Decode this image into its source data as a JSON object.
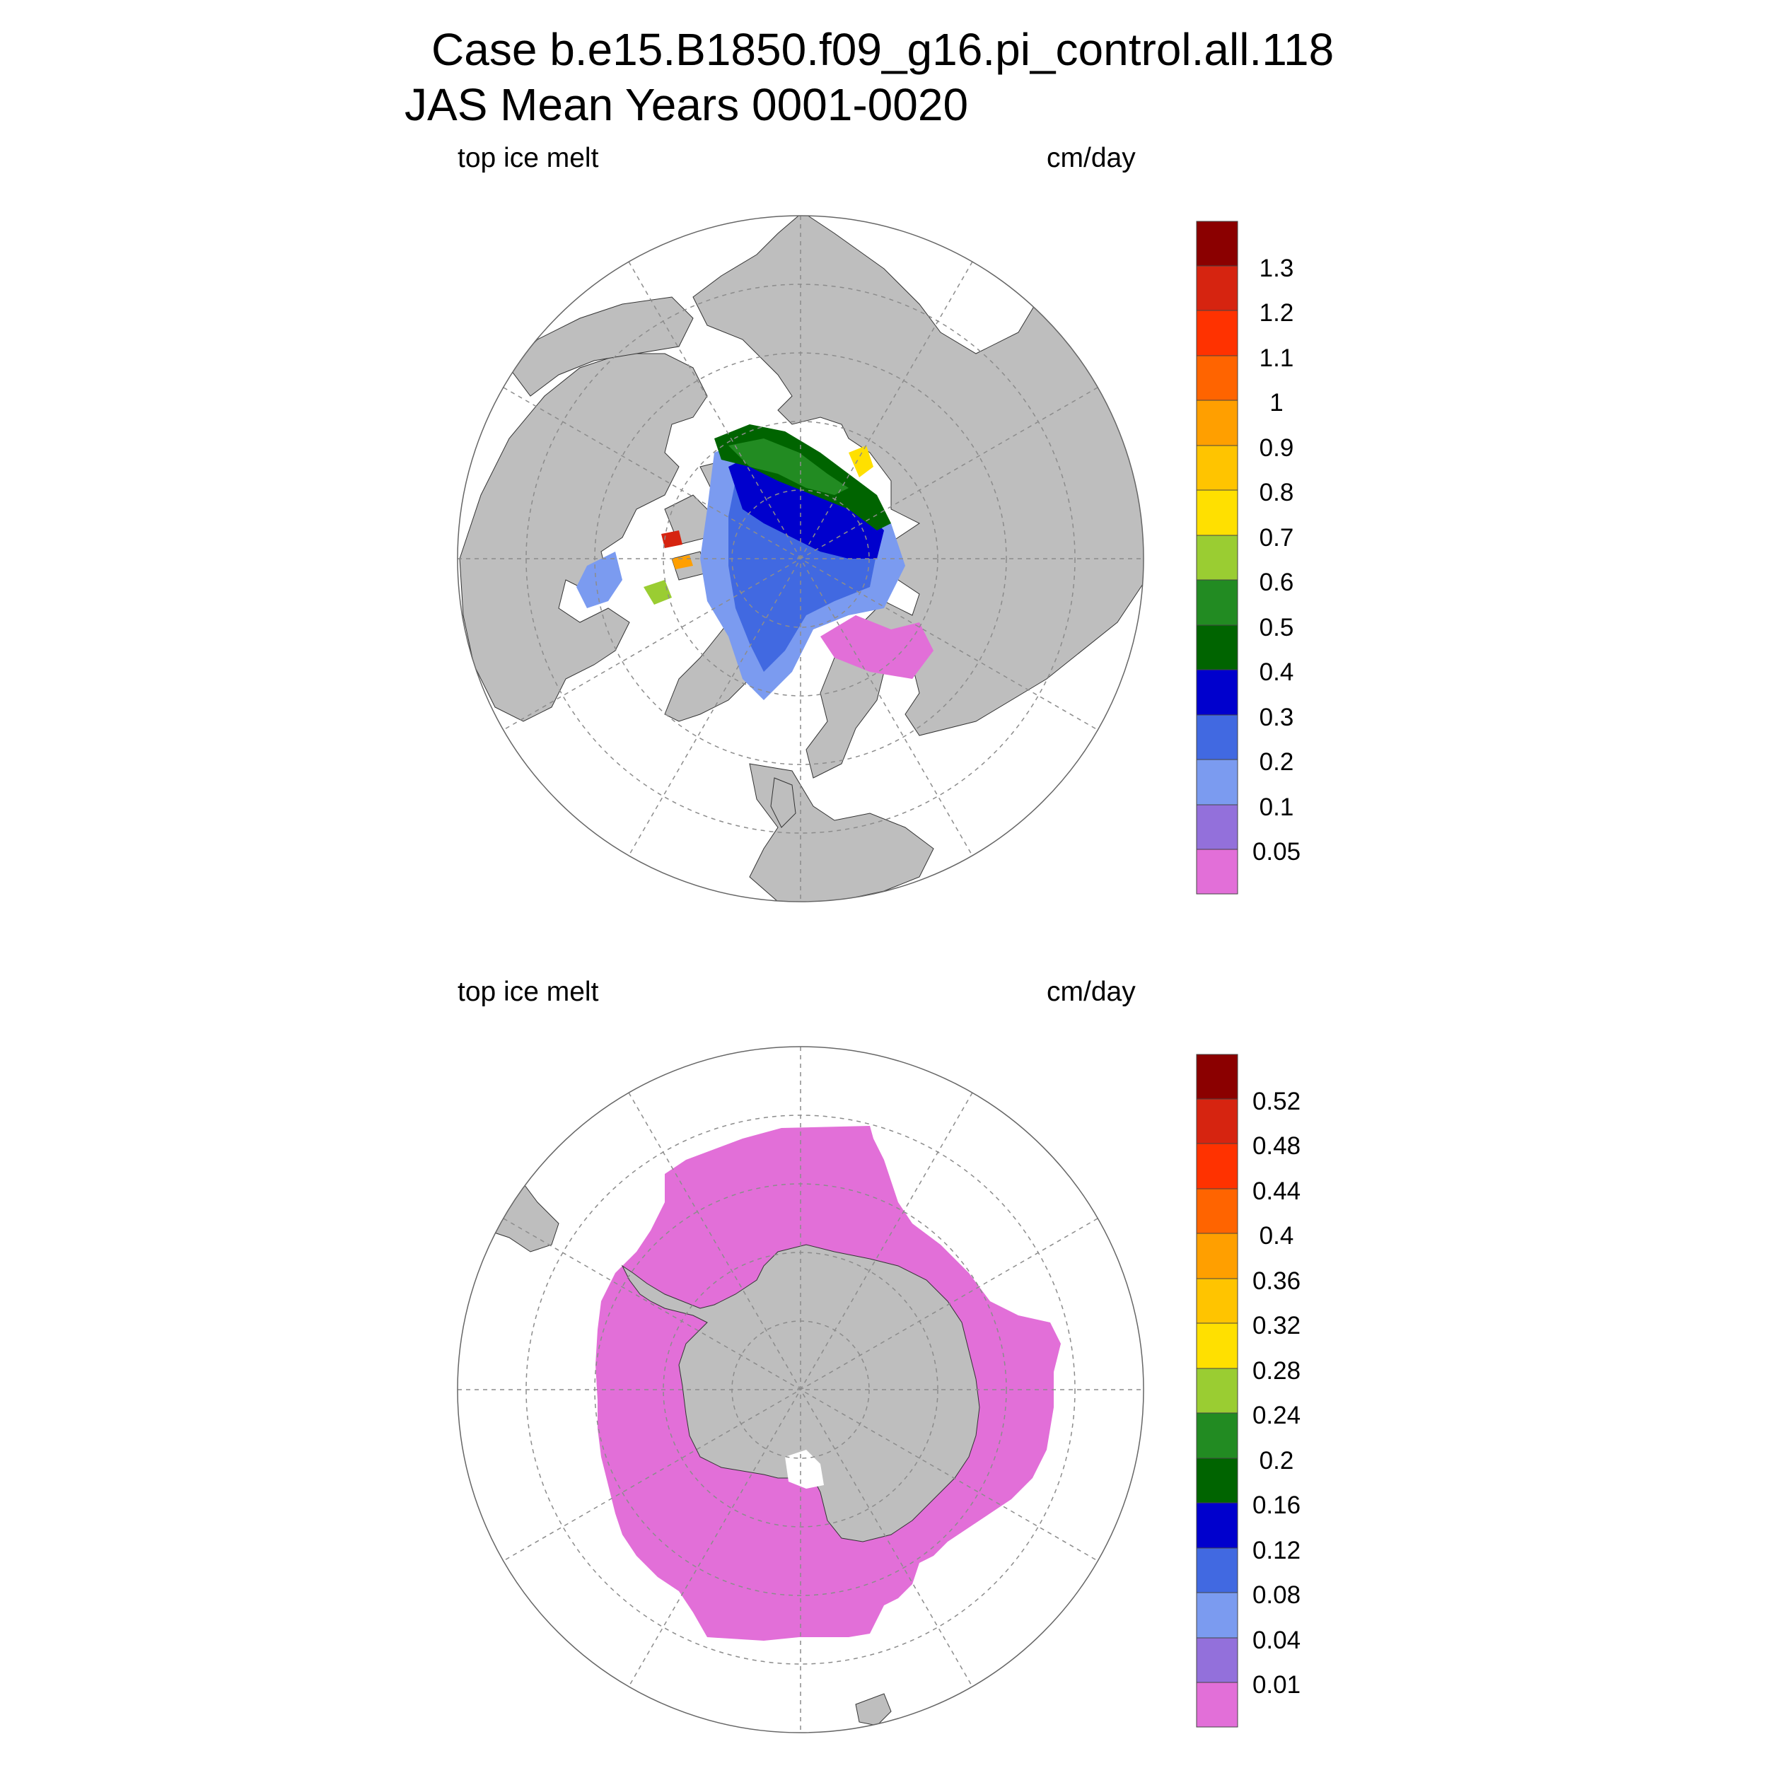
{
  "title": {
    "line1": "Case b.e15.B1850.f09_g16.pi_control.all.118",
    "line2": "JAS Mean   Years 0001-0020"
  },
  "colors": {
    "land": "#bebebe",
    "ocean": "#ffffff",
    "grid": "#8c8c8c",
    "palette": [
      "#e26fd8",
      "#9370db",
      "#7b9bf0",
      "#4169e1",
      "#0000cd",
      "#006400",
      "#228b22",
      "#9acd32",
      "#ffe000",
      "#ffc400",
      "#ff9f00",
      "#ff6400",
      "#ff3200",
      "#d62410",
      "#8b0000"
    ]
  },
  "panels": [
    {
      "id": "north",
      "left_label": "top ice melt",
      "right_label": "cm/day",
      "hemisphere": "Arctic",
      "colorbar_levels": [
        "1.3",
        "1.2",
        "1.1",
        "1",
        "0.9",
        "0.8",
        "0.7",
        "0.6",
        "0.5",
        "0.4",
        "0.3",
        "0.2",
        "0.1",
        "0.05"
      ]
    },
    {
      "id": "south",
      "left_label": "top ice melt",
      "right_label": "cm/day",
      "hemisphere": "Antarctic",
      "colorbar_levels": [
        "0.52",
        "0.48",
        "0.44",
        "0.4",
        "0.36",
        "0.32",
        "0.28",
        "0.24",
        "0.2",
        "0.16",
        "0.12",
        "0.08",
        "0.04",
        "0.01"
      ]
    }
  ]
}
